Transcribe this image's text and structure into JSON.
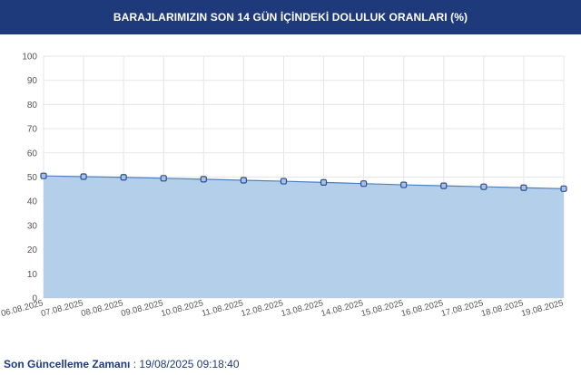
{
  "header": {
    "title": "BARAJLARIMIZIN SON 14 GÜN İÇİNDEKİ DOLULUK ORANLARI (%)"
  },
  "chart_data": {
    "type": "area",
    "title": "BARAJLARIMIZIN SON 14 GÜN İÇİNDEKİ DOLULUK ORANLARI (%)",
    "categories": [
      "06.08.2025",
      "07.08.2025",
      "08.08.2025",
      "09.08.2025",
      "10.08.2025",
      "11.08.2025",
      "12.08.2025",
      "13.08.2025",
      "14.08.2025",
      "15.08.2025",
      "16.08.2025",
      "17.08.2025",
      "18.08.2025",
      "19.08.2025"
    ],
    "series": [
      {
        "values": [
          50.5,
          50.2,
          49.9,
          49.5,
          49.1,
          48.7,
          48.3,
          47.8,
          47.3,
          46.8,
          46.4,
          46.0,
          45.6,
          45.2
        ]
      }
    ],
    "yticks": [
      0,
      10,
      20,
      30,
      40,
      50,
      60,
      70,
      80,
      90,
      100
    ],
    "ylim": [
      0,
      100
    ],
    "grid": true,
    "legend": "none",
    "colors": {
      "fill": "#b4cfea",
      "line": "#4d7fbf",
      "marker_fill": "#a9c3e6",
      "marker_stroke": "#2c4f8c",
      "grid": "#e6e6e6",
      "axis_text": "#555555"
    }
  },
  "footer": {
    "label": "Son Güncelleme Zamanı",
    "separator": " : ",
    "value": "19/08/2025 09:18:40"
  }
}
